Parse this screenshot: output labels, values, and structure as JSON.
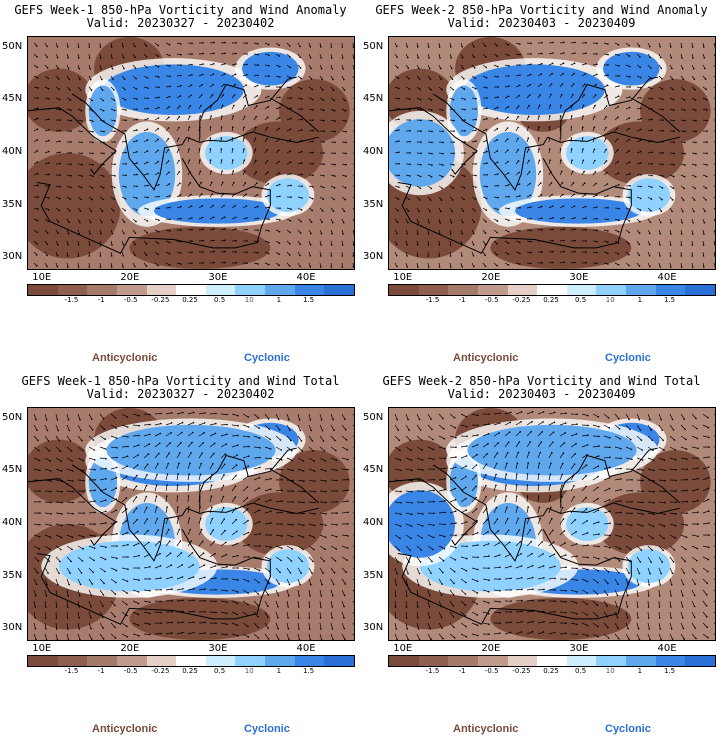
{
  "panels": [
    {
      "title1": "GEFS Week-1 850-hPa Vorticity and Wind Anomaly",
      "title2": "Valid: 20230327 - 20230402",
      "variant": 0
    },
    {
      "title1": "GEFS Week-2 850-hPa Vorticity and Wind Anomaly",
      "title2": "Valid: 20230403 - 20230409",
      "variant": 1
    },
    {
      "title1": "GEFS Week-1 850-hPa Vorticity and Wind Total",
      "title2": "Valid: 20230327 - 20230402",
      "variant": 2
    },
    {
      "title1": "GEFS Week-2 850-hPa Vorticity and Wind Total",
      "title2": "Valid: 20230403 - 20230409",
      "variant": 3
    }
  ],
  "lat_labels": [
    "50N",
    "45N",
    "40N",
    "35N",
    "30N"
  ],
  "lon_labels": [
    "10E",
    "20E",
    "30E",
    "40E"
  ],
  "colorbar": {
    "ticks": [
      "-1.5",
      "-1",
      "-0.5",
      "-0.25",
      "0.25",
      "0.5",
      "1",
      "1.5"
    ],
    "scale_label": "10",
    "colors": [
      "#7a4a3a",
      "#8e5e4e",
      "#a47a6a",
      "#c09a8a",
      "#e6cfc6",
      "#ffffff",
      "#cfefff",
      "#8fd2ff",
      "#5fa8ee",
      "#3a86e6",
      "#2a6fd6"
    ]
  },
  "legend": {
    "anticyclonic": "Anticyclonic",
    "cyclonic": "Cyclonic"
  }
}
